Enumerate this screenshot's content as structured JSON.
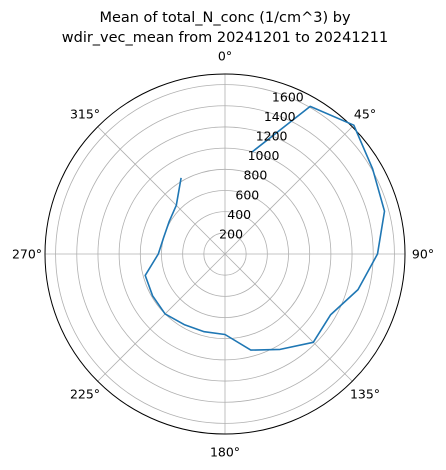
{
  "chart_data": {
    "type": "line",
    "projection": "polar",
    "title_lines": [
      "Mean of total_N_conc (1/cm^3) by",
      "wdir_vec_mean from 20241201 to 20241211"
    ],
    "theta_direction": "clockwise",
    "theta_zero_location": "top",
    "theta_ticks": [
      "0°",
      "45°",
      "90°",
      "135°",
      "180°",
      "225°",
      "270°",
      "315°"
    ],
    "r_ticks": [
      "200",
      "400",
      "600",
      "800",
      "1000",
      "1200",
      "1400",
      "1600"
    ],
    "r_tick_values": [
      200,
      400,
      600,
      800,
      1000,
      1200,
      1400,
      1600
    ],
    "rlim": [
      0,
      1700
    ],
    "grid": true,
    "series": [
      {
        "color": "#1f77b4",
        "points": [
          {
            "theta": 15,
            "r": 1000
          },
          {
            "theta": 30,
            "r": 1610
          },
          {
            "theta": 45,
            "r": 1720
          },
          {
            "theta": 60,
            "r": 1610
          },
          {
            "theta": 75,
            "r": 1560
          },
          {
            "theta": 90,
            "r": 1440
          },
          {
            "theta": 105,
            "r": 1300
          },
          {
            "theta": 120,
            "r": 1150
          },
          {
            "theta": 135,
            "r": 1180
          },
          {
            "theta": 150,
            "r": 1040
          },
          {
            "theta": 165,
            "r": 940
          },
          {
            "theta": 180,
            "r": 760
          },
          {
            "theta": 195,
            "r": 760
          },
          {
            "theta": 210,
            "r": 770
          },
          {
            "theta": 225,
            "r": 800
          },
          {
            "theta": 240,
            "r": 790
          },
          {
            "theta": 255,
            "r": 780
          },
          {
            "theta": 270,
            "r": 630
          },
          {
            "theta": 285,
            "r": 600
          },
          {
            "theta": 300,
            "r": 610
          },
          {
            "theta": 315,
            "r": 650
          },
          {
            "theta": 330,
            "r": 830
          }
        ]
      }
    ]
  }
}
